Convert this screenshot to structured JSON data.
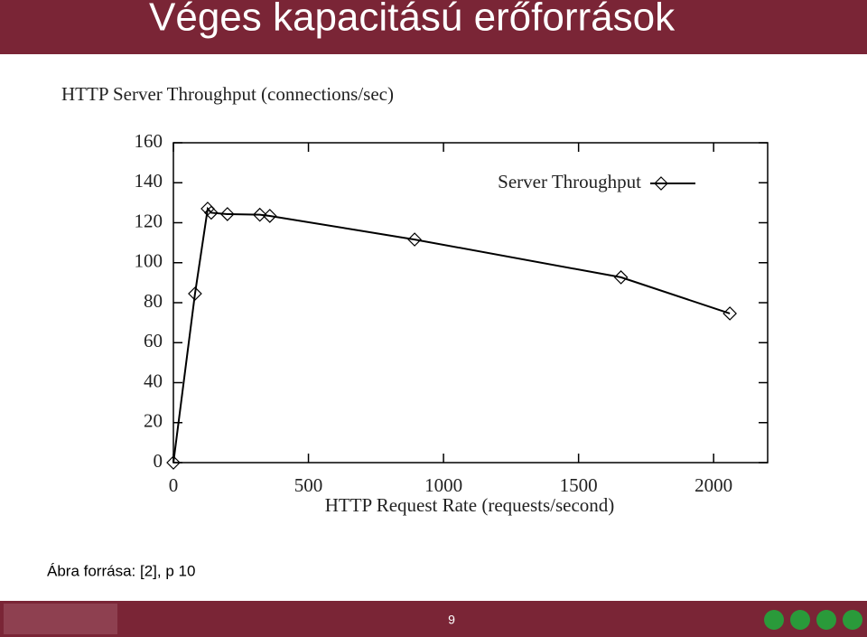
{
  "slide": {
    "title": "Véges kapacitású erőforrások",
    "caption": "Ábra forrása: [2], p 10",
    "page_number": 9
  },
  "chart_data": {
    "type": "line",
    "title": "HTTP Server Throughput (connections/sec)",
    "x_label": "HTTP Request Rate (requests/second)",
    "x": [
      0,
      80,
      127,
      140,
      200,
      320,
      357,
      893,
      1657,
      2060
    ],
    "series": [
      {
        "name": "Server Throughput",
        "color": "#000000",
        "values": [
          0,
          84.5,
          127,
          125,
          124.3,
          124,
          123.4,
          111.6,
          92.7,
          74.6
        ]
      }
    ],
    "xlim": [
      0,
      2200
    ],
    "xticks": [
      0,
      500,
      1000,
      1500,
      2000
    ],
    "ylim": [
      0,
      160
    ],
    "yticks": [
      0,
      20,
      40,
      60,
      80,
      100,
      120,
      140,
      160
    ],
    "grid": false,
    "legend": "upper right"
  }
}
